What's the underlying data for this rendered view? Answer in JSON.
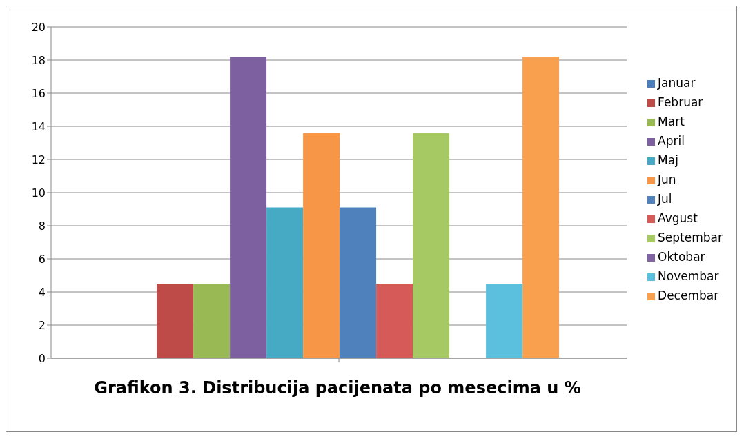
{
  "chart_data": {
    "type": "bar",
    "title": "Grafikon 3. Distribucija pacijenata po mesecima u %",
    "categories": [
      null
    ],
    "ylim": [
      0,
      20
    ],
    "yticks": [
      0,
      2,
      4,
      6,
      8,
      10,
      12,
      14,
      16,
      18,
      20
    ],
    "grid": "y",
    "legend": "right",
    "series": [
      {
        "name": "Januar",
        "color": "#4a7ebb",
        "values": [
          0
        ]
      },
      {
        "name": "Februar",
        "color": "#be4b48",
        "values": [
          4.5
        ]
      },
      {
        "name": "Mart",
        "color": "#98b954",
        "values": [
          4.5
        ]
      },
      {
        "name": "April",
        "color": "#7d60a0",
        "values": [
          18.2
        ]
      },
      {
        "name": "Maj",
        "color": "#46aac5",
        "values": [
          9.1
        ]
      },
      {
        "name": "Jun",
        "color": "#f79646",
        "values": [
          13.6
        ]
      },
      {
        "name": "Jul",
        "color": "#4f81bd",
        "values": [
          9.1
        ]
      },
      {
        "name": "Avgust",
        "color": "#d65a57",
        "values": [
          4.5
        ]
      },
      {
        "name": "Septembar",
        "color": "#a6c964",
        "values": [
          13.6
        ]
      },
      {
        "name": "Oktobar",
        "color": "#8064a2",
        "values": [
          0
        ]
      },
      {
        "name": "Novembar",
        "color": "#5bc0de",
        "values": [
          4.5
        ]
      },
      {
        "name": "Decembar",
        "color": "#f9a04f",
        "values": [
          18.2
        ]
      }
    ]
  }
}
